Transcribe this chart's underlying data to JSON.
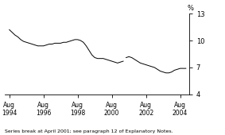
{
  "title": "",
  "ylabel": "%",
  "ylim": [
    4,
    13
  ],
  "yticks": [
    4,
    7,
    10,
    13
  ],
  "xlim_start": 1994.3,
  "xlim_end": 2005.1,
  "xtick_labels": [
    "Aug\n1994",
    "Aug\n1996",
    "Aug\n1998",
    "Aug\n2000",
    "Aug\n2002",
    "Aug\n2004"
  ],
  "xtick_positions": [
    1994.583,
    1996.583,
    1998.583,
    2000.583,
    2002.583,
    2004.583
  ],
  "footnote": "Series break at April 2001; see paragraph 12 of Explanatory Notes.",
  "line_color": "#000000",
  "background_color": "#ffffff",
  "data_x": [
    1994.583,
    1994.75,
    1994.917,
    1995.083,
    1995.25,
    1995.417,
    1995.583,
    1995.75,
    1995.917,
    1996.083,
    1996.25,
    1996.417,
    1996.583,
    1996.75,
    1996.917,
    1997.083,
    1997.25,
    1997.417,
    1997.583,
    1997.75,
    1997.917,
    1998.083,
    1998.25,
    1998.417,
    1998.583,
    1998.75,
    1998.917,
    1999.083,
    1999.25,
    1999.417,
    1999.583,
    1999.75,
    1999.917,
    2000.083,
    2000.25,
    2000.417,
    2000.583,
    2000.75,
    2000.917,
    2001.083,
    2001.25,
    2001.417,
    2001.583,
    2001.75,
    2001.917,
    2002.083,
    2002.25,
    2002.417,
    2002.583,
    2002.75,
    2002.917,
    2003.083,
    2003.25,
    2003.417,
    2003.583,
    2003.75,
    2003.917,
    2004.083,
    2004.25,
    2004.417,
    2004.583,
    2004.75,
    2004.917
  ],
  "data_y": [
    11.2,
    10.9,
    10.6,
    10.4,
    10.1,
    9.9,
    9.8,
    9.7,
    9.6,
    9.5,
    9.4,
    9.4,
    9.4,
    9.5,
    9.6,
    9.6,
    9.7,
    9.7,
    9.7,
    9.8,
    9.8,
    9.9,
    10.0,
    10.1,
    10.1,
    10.0,
    9.8,
    9.4,
    8.9,
    8.4,
    8.1,
    8.0,
    8.0,
    8.0,
    7.9,
    7.8,
    7.7,
    7.6,
    7.5,
    7.6,
    7.7,
    8.1,
    8.2,
    8.1,
    7.9,
    7.7,
    7.5,
    7.4,
    7.3,
    7.2,
    7.1,
    7.0,
    6.8,
    6.6,
    6.5,
    6.4,
    6.4,
    6.5,
    6.7,
    6.8,
    6.9,
    6.9,
    6.9
  ],
  "break_index": 41
}
